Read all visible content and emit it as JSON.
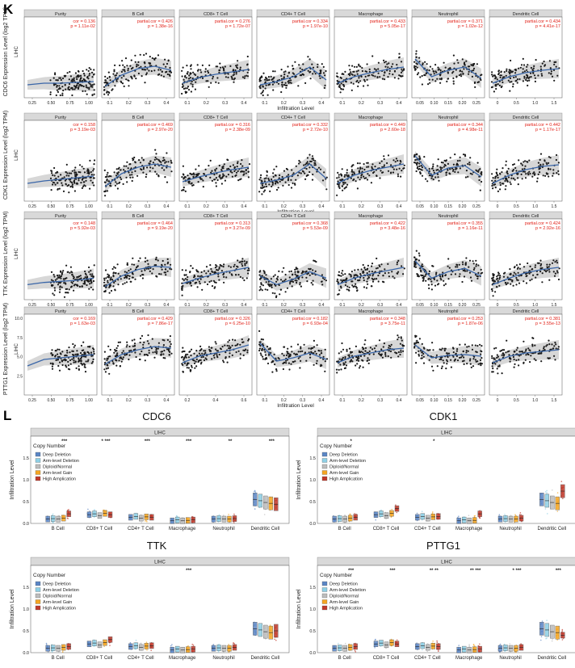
{
  "panel_labels": {
    "K": "K",
    "L": "L"
  },
  "colors": {
    "point": "#1a1a1a",
    "fit_line": "#3a66a8",
    "ci_band": "#c9c9c9",
    "strip": "#d9d9d9",
    "stat_text": "#e2231a",
    "deep_deletion": "#5b86c5",
    "arm_deletion": "#8fd0e6",
    "diploid": "#bdbdbd",
    "arm_gain": "#f5a623",
    "high_amp": "#c0392b"
  },
  "chart_data": [
    {
      "type": "scatter",
      "panel": "K",
      "gene": "CDC6",
      "cancer": "LIHC",
      "ylabel": "CDC6 Expression Level (log2 TPM)",
      "xlabel": "Infiltration Level",
      "ylim": [
        0,
        10
      ],
      "facets": [
        {
          "name": "Purity",
          "stat_label": "cor",
          "cor": "0.136",
          "p": "1.11e-02",
          "xticks": [
            "0.25",
            "0.50",
            "0.75",
            "1.00"
          ],
          "xlim": [
            0.1,
            1.0
          ],
          "trend": [
            1.6,
            1.8,
            1.8,
            1.9,
            2.0
          ]
        },
        {
          "name": "B Cell",
          "stat_label": "partial.cor",
          "cor": "0.426",
          "p": "1.38e-16",
          "xticks": [
            "0.1",
            "0.2",
            "0.3",
            "0.4"
          ],
          "xlim": [
            0.02,
            0.45
          ],
          "trend": [
            1.4,
            2.8,
            3.6,
            3.9,
            3.4
          ]
        },
        {
          "name": "CD8+ T Cell",
          "stat_label": "partial.cor",
          "cor": "0.276",
          "p": "1.72e-07",
          "xticks": [
            "0.1",
            "0.2",
            "0.3",
            "0.4"
          ],
          "xlim": [
            0.02,
            0.45
          ],
          "trend": [
            1.8,
            2.5,
            2.9,
            3.2,
            3.5
          ]
        },
        {
          "name": "CD4+ T Cell",
          "stat_label": "partial.cor",
          "cor": "0.334",
          "p": "1.97e-10",
          "xticks": [
            "0.1",
            "0.2",
            "0.3",
            "0.4"
          ],
          "xlim": [
            0.02,
            0.45
          ],
          "trend": [
            1.6,
            2.0,
            2.6,
            3.8,
            2.2
          ]
        },
        {
          "name": "Macrophage",
          "stat_label": "partial.cor",
          "cor": "0.433",
          "p": "5.05e-17",
          "xticks": [
            "0.1",
            "0.2",
            "0.3",
            "0.4"
          ],
          "xlim": [
            0.02,
            0.45
          ],
          "trend": [
            1.8,
            2.6,
            3.1,
            3.5,
            3.8
          ]
        },
        {
          "name": "Neutrophil",
          "stat_label": "partial.cor",
          "cor": "0.371",
          "p": "1.02e-12",
          "xticks": [
            "0.05",
            "0.10",
            "0.15",
            "0.20",
            "0.25"
          ],
          "xlim": [
            0.05,
            0.28
          ],
          "trend": [
            4.8,
            2.6,
            3.4,
            3.8,
            2.4
          ]
        },
        {
          "name": "Dendritic Cell",
          "stat_label": "partial.cor",
          "cor": "0.434",
          "p": "4.41e-17",
          "xticks": [
            "0",
            "0.5",
            "1.0",
            "1.5"
          ],
          "xlim": [
            0.0,
            1.7
          ],
          "trend": [
            1.8,
            2.6,
            3.1,
            3.4,
            3.6
          ]
        }
      ]
    },
    {
      "type": "scatter",
      "panel": "K",
      "gene": "CDK1",
      "cancer": "LIHC",
      "ylabel": "CDK1 Expression Level (log2 TPM)",
      "xlabel": "Infiltration Level",
      "ylim": [
        0,
        10
      ],
      "facets": [
        {
          "name": "Purity",
          "stat_label": "cor",
          "cor": "0.158",
          "p": "3.19e-03",
          "xticks": [
            "0.25",
            "0.50",
            "0.75",
            "1.00"
          ],
          "xlim": [
            0.1,
            1.0
          ],
          "trend": [
            2.2,
            2.5,
            2.7,
            2.9,
            3.1
          ]
        },
        {
          "name": "B Cell",
          "stat_label": "partial.cor",
          "cor": "0.469",
          "p": "2.97e-20",
          "xticks": [
            "0.1",
            "0.2",
            "0.3",
            "0.4"
          ],
          "xlim": [
            0.02,
            0.45
          ],
          "trend": [
            1.8,
            3.4,
            4.2,
            4.6,
            4.2
          ]
        },
        {
          "name": "CD8+ T Cell",
          "stat_label": "partial.cor",
          "cor": "0.316",
          "p": "2.38e-09",
          "xticks": [
            "0.1",
            "0.2",
            "0.3",
            "0.4"
          ],
          "xlim": [
            0.02,
            0.45
          ],
          "trend": [
            2.4,
            3.0,
            3.5,
            3.9,
            4.2
          ]
        },
        {
          "name": "CD4+ T Cell",
          "stat_label": "partial.cor",
          "cor": "0.332",
          "p": "2.72e-10",
          "xticks": [
            "0.1",
            "0.2",
            "0.3",
            "0.4"
          ],
          "xlim": [
            0.02,
            0.45
          ],
          "trend": [
            2.2,
            2.6,
            3.2,
            4.6,
            2.8
          ]
        },
        {
          "name": "Macrophage",
          "stat_label": "partial.cor",
          "cor": "0.449",
          "p": "2.60e-18",
          "xticks": [
            "0.1",
            "0.2",
            "0.3",
            "0.4"
          ],
          "xlim": [
            0.02,
            0.45
          ],
          "trend": [
            2.2,
            3.2,
            3.8,
            4.2,
            4.6
          ]
        },
        {
          "name": "Neutrophil",
          "stat_label": "partial.cor",
          "cor": "0.344",
          "p": "4.98e-11",
          "xticks": [
            "0.05",
            "0.10",
            "0.15",
            "0.20",
            "0.25"
          ],
          "xlim": [
            0.05,
            0.28
          ],
          "trend": [
            5.6,
            3.2,
            4.1,
            4.4,
            3.0
          ]
        },
        {
          "name": "Dendritic Cell",
          "stat_label": "partial.cor",
          "cor": "0.442",
          "p": "1.17e-17",
          "xticks": [
            "0",
            "0.5",
            "1.0",
            "1.5"
          ],
          "xlim": [
            0.0,
            1.7
          ],
          "trend": [
            2.2,
            3.2,
            3.9,
            4.3,
            4.5
          ]
        }
      ]
    },
    {
      "type": "scatter",
      "panel": "K",
      "gene": "TTK",
      "cancer": "LIHC",
      "ylabel": "TTK Expression Level (log2 TPM)",
      "xlabel": "Infiltration Level",
      "ylim": [
        0,
        7.5
      ],
      "facets": [
        {
          "name": "Purity",
          "stat_label": "cor",
          "cor": "0.148",
          "p": "5.92e-03",
          "xticks": [
            "0.25",
            "0.50",
            "0.75",
            "1.00"
          ],
          "xlim": [
            0.1,
            1.0
          ],
          "trend": [
            1.4,
            1.6,
            1.7,
            1.8,
            2.0
          ]
        },
        {
          "name": "B Cell",
          "stat_label": "partial.cor",
          "cor": "0.464",
          "p": "9.19e-20",
          "xticks": [
            "0.1",
            "0.2",
            "0.3",
            "0.4"
          ],
          "xlim": [
            0.02,
            0.45
          ],
          "trend": [
            1.2,
            2.2,
            2.8,
            3.1,
            3.0
          ]
        },
        {
          "name": "CD8+ T Cell",
          "stat_label": "partial.cor",
          "cor": "0.313",
          "p": "3.27e-09",
          "xticks": [
            "0.1",
            "0.2",
            "0.3",
            "0.4"
          ],
          "xlim": [
            0.02,
            0.45
          ],
          "trend": [
            1.5,
            2.0,
            2.4,
            2.7,
            3.0
          ]
        },
        {
          "name": "CD4+ T Cell",
          "stat_label": "partial.cor",
          "cor": "0.368",
          "p": "5.53e-09",
          "xticks": [
            "0.1",
            "0.2",
            "0.3",
            "0.4"
          ],
          "xlim": [
            0.02,
            0.45
          ],
          "trend": [
            2.2,
            1.4,
            1.9,
            2.6,
            2.0
          ]
        },
        {
          "name": "Macrophage",
          "stat_label": "partial.cor",
          "cor": "0.422",
          "p": "3.48e-16",
          "xticks": [
            "0.1",
            "0.2",
            "0.3",
            "0.4"
          ],
          "xlim": [
            0.02,
            0.45
          ],
          "trend": [
            1.4,
            2.0,
            2.4,
            2.7,
            3.0
          ]
        },
        {
          "name": "Neutrophil",
          "stat_label": "partial.cor",
          "cor": "0.355",
          "p": "1.16e-11",
          "xticks": [
            "0.05",
            "0.10",
            "0.15",
            "0.20",
            "0.25"
          ],
          "xlim": [
            0.05,
            0.28
          ],
          "trend": [
            3.6,
            2.0,
            2.6,
            2.9,
            2.2
          ]
        },
        {
          "name": "Dendritic Cell",
          "stat_label": "partial.cor",
          "cor": "0.424",
          "p": "2.92e-16",
          "xticks": [
            "0",
            "0.5",
            "1.0",
            "1.5"
          ],
          "xlim": [
            0.0,
            1.7
          ],
          "trend": [
            1.4,
            2.0,
            2.5,
            2.8,
            3.0
          ]
        }
      ]
    },
    {
      "type": "scatter",
      "panel": "K",
      "gene": "PTTG1",
      "cancer": "LIHC",
      "ylabel": "PTTG1 Expression Level (log2 TPM)",
      "xlabel": "Infiltration Level",
      "ylim": [
        0,
        10
      ],
      "yticks": [
        "2.5",
        "5.0",
        "7.5",
        "10.0"
      ],
      "facets": [
        {
          "name": "Purity",
          "stat_label": "cor",
          "cor": "0.169",
          "p": "1.63e-03",
          "xticks": [
            "0.25",
            "0.50",
            "0.75",
            "1.00"
          ],
          "xlim": [
            0.1,
            1.0
          ],
          "trend": [
            3.6,
            4.4,
            4.6,
            4.8,
            5.0
          ]
        },
        {
          "name": "B Cell",
          "stat_label": "partial.cor",
          "cor": "0.429",
          "p": "7.86e-17",
          "xticks": [
            "0.1",
            "0.2",
            "0.3",
            "0.4"
          ],
          "xlim": [
            0.02,
            0.45
          ],
          "trend": [
            3.8,
            5.0,
            5.6,
            6.0,
            5.8
          ]
        },
        {
          "name": "CD8+ T Cell",
          "stat_label": "partial.cor",
          "cor": "0.326",
          "p": "6.25e-10",
          "xticks": [
            "0.2",
            "0.4",
            "0.6"
          ],
          "xlim": [
            0.02,
            0.7
          ],
          "trend": [
            4.0,
            4.8,
            5.2,
            5.6,
            6.2
          ]
        },
        {
          "name": "CD4+ T Cell",
          "stat_label": "partial.cor",
          "cor": "0.182",
          "p": "6.93e-04",
          "xticks": [
            "0.1",
            "0.2",
            "0.3",
            "0.4"
          ],
          "xlim": [
            0.02,
            0.45
          ],
          "trend": [
            6.4,
            4.2,
            4.6,
            5.2,
            4.4
          ]
        },
        {
          "name": "Macrophage",
          "stat_label": "partial.cor",
          "cor": "0.348",
          "p": "3.75e-11",
          "xticks": [
            "0.1",
            "0.2",
            "0.3",
            "0.4"
          ],
          "xlim": [
            0.02,
            0.45
          ],
          "trend": [
            4.0,
            4.8,
            5.2,
            5.6,
            5.8
          ]
        },
        {
          "name": "Neutrophil",
          "stat_label": "partial.cor",
          "cor": "0.253",
          "p": "1.87e-06",
          "xticks": [
            "0.05",
            "0.10",
            "0.15",
            "0.20",
            "0.25"
          ],
          "xlim": [
            0.05,
            0.28
          ],
          "trend": [
            6.2,
            4.6,
            4.9,
            5.0,
            4.8
          ]
        },
        {
          "name": "Dendritic Cell",
          "stat_label": "partial.cor",
          "cor": "0.381",
          "p": "3.55e-13",
          "xticks": [
            "0",
            "0.5",
            "1.0",
            "1.5"
          ],
          "xlim": [
            0.0,
            1.7
          ],
          "trend": [
            4.0,
            4.8,
            5.2,
            5.4,
            5.6
          ]
        }
      ]
    },
    {
      "type": "box",
      "panel": "L",
      "gene": "CDC6",
      "strip": "LIHC",
      "ylabel": "Infiltration Level",
      "yticks": [
        "0.0",
        "0.5",
        "1.0",
        "1.5"
      ],
      "ylim": [
        0,
        2.0
      ],
      "legend_title": "Copy Number",
      "legend": [
        "Deep Deletion",
        "Arm-level Deletion",
        "Diploid/Normal",
        "Arm-level Gain",
        "High Amplication"
      ],
      "categories": [
        "B Cell",
        "CD8+ T Cell",
        "CD4+ T Cell",
        "Macrophage",
        "Neutrophil",
        "Dendritic Cell"
      ],
      "stars": [
        "***",
        "* ***",
        "***",
        "***",
        "**",
        "***"
      ],
      "medians": [
        [
          0.1,
          0.11,
          0.1,
          0.12,
          0.22
        ],
        [
          0.2,
          0.22,
          0.18,
          0.23,
          0.2
        ],
        [
          0.14,
          0.16,
          0.12,
          0.15,
          0.14
        ],
        [
          0.06,
          0.08,
          0.06,
          0.07,
          0.08
        ],
        [
          0.1,
          0.11,
          0.1,
          0.1,
          0.11
        ],
        [
          0.55,
          0.52,
          0.48,
          0.46,
          0.44
        ]
      ]
    },
    {
      "type": "box",
      "panel": "L",
      "gene": "CDK1",
      "strip": "LIHC",
      "ylabel": "Infiltration Level",
      "yticks": [
        "0.0",
        "0.5",
        "1.0",
        "1.5"
      ],
      "ylim": [
        0,
        2.0
      ],
      "legend_title": "Copy Number",
      "legend": [
        "Deep Deletion",
        "Arm-level Deletion",
        "Diploid/Normal",
        "Arm-level Gain",
        "High Amplication"
      ],
      "categories": [
        "B Cell",
        "CD8+ T Cell",
        "CD4+ T Cell",
        "Macrophage",
        "Neutrophil",
        "Dendritic Cell"
      ],
      "stars": [
        "*",
        "",
        "*",
        "",
        "",
        ""
      ],
      "medians": [
        [
          0.1,
          0.11,
          0.1,
          0.12,
          0.14
        ],
        [
          0.2,
          0.22,
          0.18,
          0.23,
          0.34
        ],
        [
          0.14,
          0.16,
          0.12,
          0.15,
          0.16
        ],
        [
          0.06,
          0.08,
          0.06,
          0.07,
          0.22
        ],
        [
          0.1,
          0.11,
          0.1,
          0.1,
          0.12
        ],
        [
          0.55,
          0.52,
          0.48,
          0.46,
          0.74
        ]
      ]
    },
    {
      "type": "box",
      "panel": "L",
      "gene": "TTK",
      "strip": "LIHC",
      "ylabel": "Infiltration Level",
      "yticks": [
        "0.0",
        "0.5",
        "1.0",
        "1.5"
      ],
      "ylim": [
        0,
        2.0
      ],
      "legend_title": "Copy Number",
      "legend": [
        "Deep Deletion",
        "Arm-level Deletion",
        "Diploid/Normal",
        "Arm-level Gain",
        "High Amplication"
      ],
      "categories": [
        "B Cell",
        "CD8+ T Cell",
        "CD4+ T Cell",
        "Macrophage",
        "Neutrophil",
        "Dendritic Cell"
      ],
      "stars": [
        "",
        "",
        "",
        "***",
        "",
        ""
      ],
      "medians": [
        [
          0.1,
          0.11,
          0.1,
          0.12,
          0.14
        ],
        [
          0.2,
          0.22,
          0.18,
          0.23,
          0.3
        ],
        [
          0.14,
          0.16,
          0.12,
          0.15,
          0.16
        ],
        [
          0.06,
          0.08,
          0.06,
          0.07,
          0.08
        ],
        [
          0.1,
          0.11,
          0.1,
          0.1,
          0.12
        ],
        [
          0.55,
          0.52,
          0.48,
          0.46,
          0.5
        ]
      ]
    },
    {
      "type": "box",
      "panel": "L",
      "gene": "PTTG1",
      "strip": "LIHC",
      "ylabel": "Infiltration Level",
      "yticks": [
        "0.0",
        "0.5",
        "1.0",
        "1.5"
      ],
      "ylim": [
        0,
        2.0
      ],
      "legend_title": "Copy Number",
      "legend": [
        "Deep Deletion",
        "Arm-level Deletion",
        "Diploid/Normal",
        "Arm-level Gain",
        "High Amplication"
      ],
      "categories": [
        "B Cell",
        "CD8+ T Cell",
        "CD4+ T Cell",
        "Macrophage",
        "Neutrophil",
        "Dendritic Cell"
      ],
      "stars": [
        "***",
        "***",
        "** **",
        "** ***",
        "* ***",
        "***"
      ],
      "medians": [
        [
          0.1,
          0.11,
          0.1,
          0.12,
          0.14
        ],
        [
          0.2,
          0.22,
          0.18,
          0.23,
          0.2
        ],
        [
          0.14,
          0.16,
          0.12,
          0.15,
          0.14
        ],
        [
          0.06,
          0.08,
          0.06,
          0.07,
          0.08
        ],
        [
          0.1,
          0.11,
          0.1,
          0.1,
          0.12
        ],
        [
          0.55,
          0.52,
          0.48,
          0.46,
          0.4
        ]
      ]
    }
  ]
}
